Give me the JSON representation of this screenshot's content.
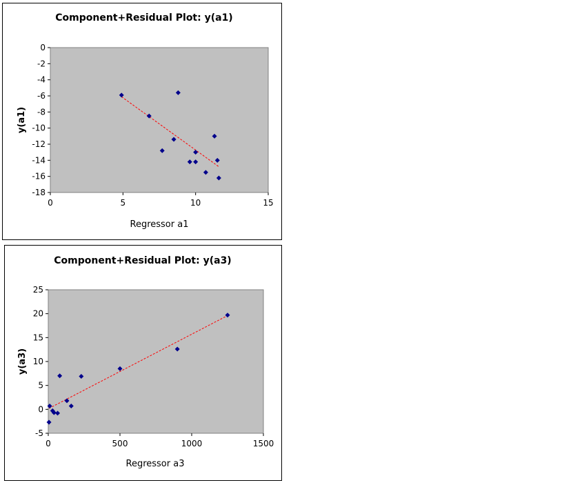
{
  "chart_data": [
    {
      "type": "scatter",
      "title": "Component+Residual Plot: y(a1)",
      "xlabel": "Regressor a1",
      "ylabel": "y(a1)",
      "xlim": [
        0,
        15
      ],
      "ylim": [
        -18,
        0
      ],
      "xticks": [
        0,
        5,
        10,
        15
      ],
      "yticks": [
        0,
        -2,
        -4,
        -6,
        -8,
        -10,
        -12,
        -14,
        -16,
        -18
      ],
      "x_tick_labels": [
        "0",
        "5",
        "10",
        "15"
      ],
      "y_tick_labels": [
        "0",
        "-2",
        "-4",
        "-6",
        "-8",
        "-10",
        "-12",
        "-14",
        "-16",
        "-18"
      ],
      "points": [
        {
          "x": 4.9,
          "y": -5.9
        },
        {
          "x": 6.8,
          "y": -8.5
        },
        {
          "x": 7.7,
          "y": -12.8
        },
        {
          "x": 8.5,
          "y": -11.4
        },
        {
          "x": 8.8,
          "y": -5.6
        },
        {
          "x": 9.6,
          "y": -14.2
        },
        {
          "x": 10.0,
          "y": -13.0
        },
        {
          "x": 10.0,
          "y": -14.2
        },
        {
          "x": 10.7,
          "y": -15.5
        },
        {
          "x": 11.3,
          "y": -11.0
        },
        {
          "x": 11.5,
          "y": -14.0
        },
        {
          "x": 11.6,
          "y": -16.2
        }
      ],
      "trendline": {
        "x": [
          4.9,
          11.6
        ],
        "y": [
          -6.1,
          -14.8
        ]
      },
      "colors": {
        "plot_bg": "#c0c0c0",
        "marker": "#00008b",
        "trendline": "#ff0000"
      }
    },
    {
      "type": "scatter",
      "title": "Component+Residual Plot: y(a3)",
      "xlabel": "Regressor a3",
      "ylabel": "y(a3)",
      "xlim": [
        0,
        1500
      ],
      "ylim": [
        -5,
        25
      ],
      "xticks": [
        0,
        500,
        1000,
        1500
      ],
      "yticks": [
        25,
        20,
        15,
        10,
        5,
        0,
        -5
      ],
      "x_tick_labels": [
        "0",
        "500",
        "1000",
        "1500"
      ],
      "y_tick_labels": [
        "25",
        "20",
        "15",
        "10",
        "5",
        "0",
        "-5"
      ],
      "points": [
        {
          "x": 5,
          "y": -2.7
        },
        {
          "x": 10,
          "y": 0.7
        },
        {
          "x": 30,
          "y": -0.3
        },
        {
          "x": 40,
          "y": -0.7
        },
        {
          "x": 65,
          "y": -0.8
        },
        {
          "x": 80,
          "y": 7.0
        },
        {
          "x": 130,
          "y": 1.8
        },
        {
          "x": 160,
          "y": 0.7
        },
        {
          "x": 230,
          "y": 6.9
        },
        {
          "x": 500,
          "y": 8.5
        },
        {
          "x": 900,
          "y": 12.6
        },
        {
          "x": 1250,
          "y": 19.7
        }
      ],
      "trendline": {
        "x": [
          5,
          1250
        ],
        "y": [
          0.2,
          19.6
        ]
      },
      "colors": {
        "plot_bg": "#c0c0c0",
        "marker": "#00008b",
        "trendline": "#ff0000"
      }
    }
  ]
}
